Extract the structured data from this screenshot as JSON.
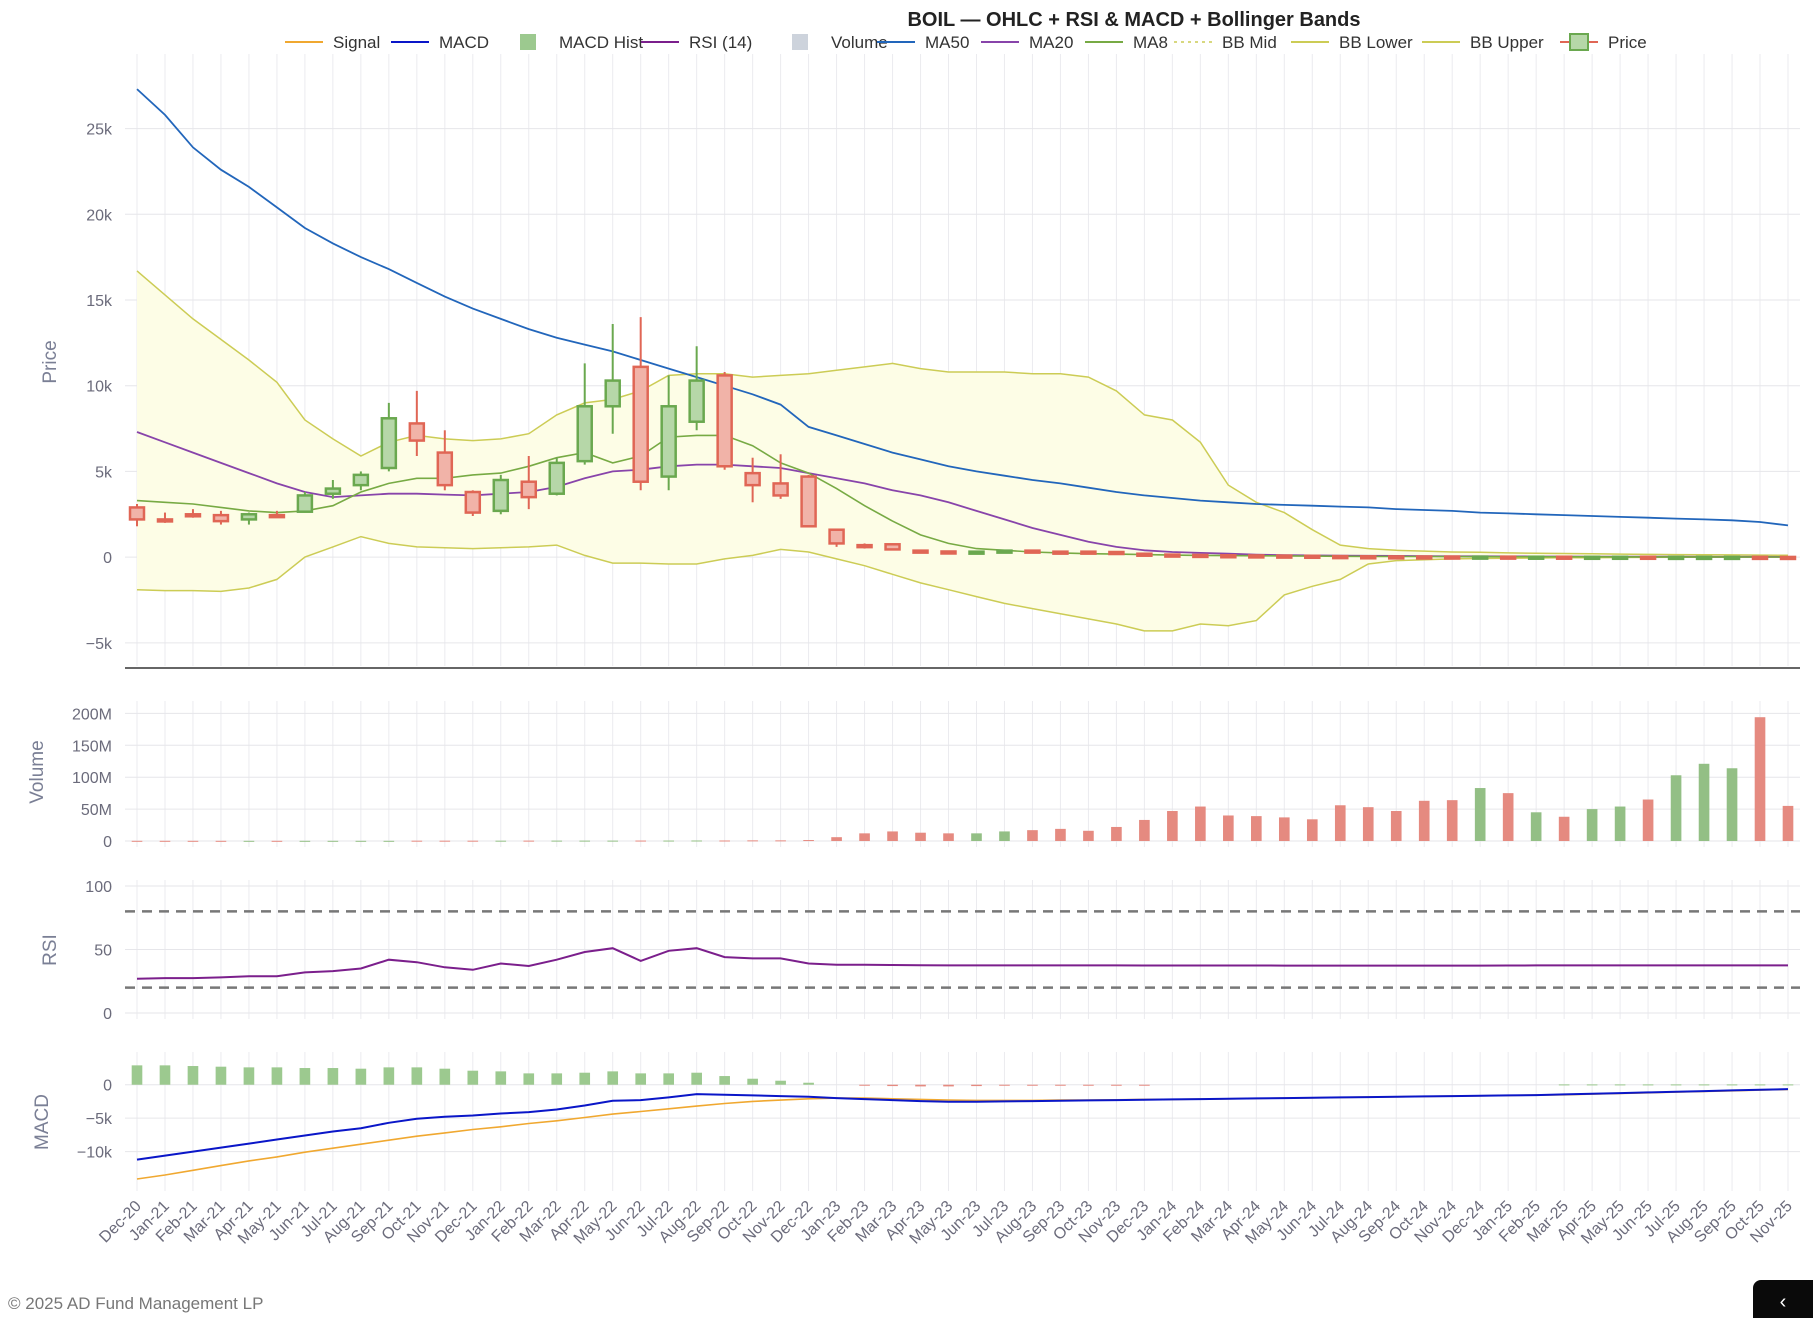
{
  "chart_data": {
    "type": "candlestick",
    "title": "BOIL — OHLC + RSI & MACD + Bollinger Bands",
    "legend": [
      "Signal",
      "MACD",
      "MACD Hist",
      "RSI (14)",
      "Volume",
      "MA50",
      "MA20",
      "MA8",
      "BB Mid",
      "BB Lower",
      "BB Upper",
      "Price"
    ],
    "legend_placement": "top",
    "colors": {
      "up": "#6aa84f",
      "up_fill": "#b6d7a8",
      "down": "#e06655",
      "down_fill": "#f1b3a8",
      "signal": "#f0a830",
      "macd": "#0a16c8",
      "rsi": "#7b1f8c",
      "ma50": "#2266bb",
      "ma20": "#8844aa",
      "ma8": "#77aa44",
      "bb": "#cccc55",
      "bb_fill": "#fdfde6",
      "vol_up": "#93bf85",
      "vol_down": "#e58a80",
      "hist": "#9cc98f"
    },
    "categories": [
      "Dec-20",
      "Jan-21",
      "Feb-21",
      "Mar-21",
      "Apr-21",
      "May-21",
      "Jun-21",
      "Jul-21",
      "Aug-21",
      "Sep-21",
      "Oct-21",
      "Nov-21",
      "Dec-21",
      "Jan-22",
      "Feb-22",
      "Mar-22",
      "Apr-22",
      "May-22",
      "Jun-22",
      "Jul-22",
      "Aug-22",
      "Sep-22",
      "Oct-22",
      "Nov-22",
      "Dec-22",
      "Jan-23",
      "Feb-23",
      "Mar-23",
      "Apr-23",
      "May-23",
      "Jun-23",
      "Jul-23",
      "Aug-23",
      "Sep-23",
      "Oct-23",
      "Nov-23",
      "Dec-23",
      "Jan-24",
      "Feb-24",
      "Mar-24",
      "Apr-24",
      "May-24",
      "Jun-24",
      "Jul-24",
      "Aug-24",
      "Sep-24",
      "Oct-24",
      "Nov-24",
      "Dec-24",
      "Jan-25",
      "Feb-25",
      "Mar-25",
      "Apr-25",
      "May-25",
      "Jun-25",
      "Jul-25",
      "Aug-25",
      "Sep-25",
      "Oct-25",
      "Nov-25"
    ],
    "price": {
      "ylabel": "Price",
      "ylim": [
        -6000,
        29000
      ],
      "ticks": [
        -5000,
        0,
        5000,
        10000,
        15000,
        20000,
        25000
      ],
      "tick_labels": [
        "−5k",
        "0",
        "5k",
        "10k",
        "15k",
        "20k",
        "25k"
      ],
      "open": [
        2900,
        2200,
        2500,
        2450,
        2200,
        2450,
        2650,
        3700,
        4200,
        5200,
        7800,
        6100,
        3800,
        2700,
        4400,
        3700,
        5600,
        8800,
        11100,
        4700,
        7900,
        10600,
        4900,
        4300,
        4700,
        1600,
        700,
        750,
        380,
        330,
        300,
        320,
        380,
        320,
        320,
        300,
        200,
        150,
        130,
        110,
        100,
        90,
        80,
        60,
        50,
        45,
        40,
        35,
        30,
        30,
        25,
        25,
        20,
        20,
        20,
        15,
        15,
        15,
        15,
        12
      ],
      "high": [
        3100,
        2600,
        2800,
        2700,
        2600,
        2700,
        3800,
        4500,
        5000,
        9000,
        9700,
        7400,
        3900,
        4800,
        5900,
        5800,
        11300,
        13600,
        14000,
        10600,
        12300,
        10800,
        5800,
        6000,
        4800,
        1650,
        800,
        800,
        420,
        380,
        340,
        360,
        420,
        360,
        350,
        320,
        230,
        180,
        150,
        130,
        110,
        100,
        90,
        75,
        60,
        50,
        45,
        40,
        35,
        35,
        30,
        28,
        25,
        22,
        22,
        18,
        18,
        18,
        18,
        15
      ],
      "low": [
        1800,
        2000,
        2300,
        1900,
        1900,
        2300,
        2600,
        3400,
        3900,
        5000,
        5900,
        3900,
        2400,
        2500,
        2800,
        3600,
        5400,
        7200,
        3900,
        3900,
        7400,
        5100,
        3200,
        3400,
        1800,
        600,
        500,
        400,
        280,
        280,
        270,
        280,
        300,
        270,
        260,
        200,
        110,
        100,
        90,
        80,
        70,
        60,
        50,
        40,
        35,
        30,
        28,
        25,
        22,
        20,
        18,
        16,
        15,
        14,
        13,
        12,
        11,
        10,
        10,
        9
      ],
      "close": [
        2200,
        2100,
        2400,
        2100,
        2500,
        2350,
        3600,
        4000,
        4800,
        8100,
        6800,
        4200,
        2600,
        4500,
        3500,
        5500,
        8800,
        10300,
        4400,
        8800,
        10300,
        5300,
        4200,
        3600,
        1800,
        800,
        650,
        450,
        330,
        300,
        320,
        380,
        310,
        310,
        300,
        200,
        150,
        130,
        110,
        100,
        90,
        80,
        70,
        50,
        45,
        40,
        35,
        30,
        30,
        25,
        25,
        20,
        20,
        20,
        15,
        15,
        15,
        15,
        12,
        10
      ],
      "ma50": [
        27300,
        25800,
        23900,
        22600,
        21600,
        20400,
        19200,
        18300,
        17500,
        16800,
        16000,
        15200,
        14500,
        13900,
        13300,
        12800,
        12400,
        12000,
        11500,
        11000,
        10500,
        10000,
        9500,
        8900,
        7600,
        7100,
        6600,
        6100,
        5700,
        5300,
        5000,
        4750,
        4500,
        4300,
        4050,
        3800,
        3600,
        3450,
        3300,
        3200,
        3100,
        3050,
        3000,
        2950,
        2900,
        2800,
        2750,
        2700,
        2600,
        2550,
        2500,
        2450,
        2400,
        2350,
        2300,
        2250,
        2200,
        2150,
        2050,
        1850
      ],
      "ma20": [
        7300,
        6700,
        6100,
        5500,
        4900,
        4300,
        3800,
        3500,
        3600,
        3700,
        3700,
        3650,
        3600,
        3700,
        3800,
        4100,
        4600,
        5000,
        5100,
        5300,
        5400,
        5400,
        5300,
        5200,
        4900,
        4600,
        4300,
        3900,
        3600,
        3200,
        2700,
        2200,
        1700,
        1300,
        900,
        600,
        400,
        300,
        250,
        200,
        150,
        120,
        100,
        90,
        80,
        70,
        60,
        50,
        50,
        45,
        40,
        35,
        30,
        30,
        28,
        25,
        22,
        20,
        18,
        15
      ],
      "ma8": [
        3300,
        3200,
        3100,
        2900,
        2700,
        2600,
        2700,
        3000,
        3800,
        4300,
        4600,
        4600,
        4800,
        4900,
        5300,
        5800,
        6100,
        5500,
        5900,
        7000,
        7100,
        7100,
        6500,
        5500,
        4900,
        4000,
        3000,
        2100,
        1300,
        800,
        500,
        400,
        300,
        250,
        200,
        180,
        150,
        120,
        100,
        90,
        80,
        70,
        60,
        50,
        45,
        40,
        35,
        30,
        28,
        25,
        22,
        20,
        18,
        16,
        15,
        14,
        13,
        12,
        11,
        10
      ],
      "bb_upper": [
        16700,
        15300,
        13900,
        12700,
        11500,
        10200,
        8000,
        6900,
        5900,
        6700,
        7100,
        6900,
        6800,
        6900,
        7200,
        8300,
        9000,
        9200,
        9700,
        10600,
        10700,
        10700,
        10500,
        10600,
        10700,
        10900,
        11100,
        11300,
        11000,
        10800,
        10800,
        10800,
        10700,
        10700,
        10500,
        9700,
        8300,
        8000,
        6700,
        4200,
        3200,
        2600,
        1600,
        700,
        500,
        400,
        350,
        300,
        280,
        250,
        230,
        210,
        200,
        180,
        160,
        150,
        140,
        130,
        120,
        110
      ],
      "bb_lower": [
        -1900,
        -1950,
        -1950,
        -2000,
        -1800,
        -1300,
        0,
        600,
        1200,
        800,
        600,
        550,
        500,
        550,
        600,
        700,
        100,
        -350,
        -350,
        -400,
        -400,
        -100,
        100,
        450,
        300,
        -100,
        -500,
        -1000,
        -1500,
        -1900,
        -2300,
        -2700,
        -3000,
        -3300,
        -3600,
        -3900,
        -4300,
        -4300,
        -3900,
        -4000,
        -3700,
        -2200,
        -1700,
        -1300,
        -400,
        -200,
        -150,
        -100,
        -80,
        -60,
        -50,
        -40,
        -30,
        -20,
        -15,
        -10,
        -8,
        -6,
        -5,
        -4
      ]
    },
    "volume": {
      "ylabel": "Volume",
      "ylim": [
        0,
        210
      ],
      "unit": "M",
      "ticks": [
        0,
        50,
        100,
        150,
        200
      ],
      "tick_labels": [
        "0",
        "50M",
        "100M",
        "150M",
        "200M"
      ],
      "values": [
        0.3,
        0.3,
        0.3,
        0.3,
        0.3,
        0.3,
        0.3,
        0.3,
        0.3,
        0.3,
        0.5,
        0.5,
        0.5,
        0.5,
        0.6,
        0.6,
        0.6,
        0.6,
        0.7,
        0.7,
        0.8,
        0.8,
        1,
        1,
        1.5,
        6,
        12,
        15,
        13,
        12,
        12,
        15,
        17,
        19,
        16,
        22,
        33,
        47,
        54,
        40,
        39,
        37,
        34,
        56,
        53,
        47,
        63,
        64,
        83,
        75,
        45,
        38,
        50,
        54,
        65,
        103,
        121,
        114,
        194,
        55
      ]
    },
    "rsi": {
      "ylabel": "RSI",
      "ylim": [
        0,
        100
      ],
      "ticks": [
        0,
        50,
        100
      ],
      "bands": [
        80,
        20
      ],
      "values": [
        27,
        27.5,
        27.5,
        28,
        29,
        29,
        32,
        33,
        35,
        42,
        40,
        36,
        34,
        39,
        37,
        42,
        48,
        51,
        41,
        49,
        51,
        44,
        43,
        43,
        39,
        38,
        38,
        37.8,
        37.6,
        37.5,
        37.5,
        37.5,
        37.5,
        37.5,
        37.5,
        37.5,
        37.4,
        37.4,
        37.4,
        37.4,
        37.4,
        37.3,
        37.3,
        37.3,
        37.3,
        37.3,
        37.3,
        37.3,
        37.3,
        37.4,
        37.5,
        37.5,
        37.5,
        37.5,
        37.5,
        37.5,
        37.5,
        37.5,
        37.5,
        37.5
      ]
    },
    "macd": {
      "ylabel": "MACD",
      "ylim": [
        -15000,
        4000
      ],
      "ticks": [
        -10000,
        -5000,
        0
      ],
      "tick_labels": [
        "−10k",
        "−5k",
        "0"
      ],
      "macd": [
        -11200,
        -10600,
        -10000,
        -9400,
        -8800,
        -8200,
        -7600,
        -7000,
        -6500,
        -5700,
        -5100,
        -4800,
        -4600,
        -4300,
        -4100,
        -3700,
        -3100,
        -2400,
        -2300,
        -1900,
        -1400,
        -1500,
        -1600,
        -1700,
        -1800,
        -2000,
        -2150,
        -2300,
        -2450,
        -2550,
        -2550,
        -2500,
        -2450,
        -2400,
        -2350,
        -2300,
        -2250,
        -2200,
        -2150,
        -2100,
        -2050,
        -2000,
        -1950,
        -1900,
        -1850,
        -1800,
        -1750,
        -1700,
        -1650,
        -1600,
        -1550,
        -1450,
        -1350,
        -1250,
        -1150,
        -1050,
        -950,
        -850,
        -750,
        -650
      ],
      "signal": [
        -14100,
        -13500,
        -12800,
        -12100,
        -11400,
        -10800,
        -10100,
        -9500,
        -8900,
        -8300,
        -7700,
        -7200,
        -6700,
        -6300,
        -5800,
        -5400,
        -4900,
        -4400,
        -4000,
        -3600,
        -3200,
        -2800,
        -2500,
        -2300,
        -2100,
        -2000,
        -2000,
        -2100,
        -2200,
        -2300,
        -2350,
        -2350,
        -2350,
        -2300,
        -2300,
        -2250,
        -2200,
        -2200,
        -2150,
        -2100,
        -2050,
        -2000,
        -1950,
        -1900,
        -1850,
        -1800,
        -1750,
        -1700,
        -1650,
        -1600,
        -1550,
        -1500,
        -1400,
        -1300,
        -1200,
        -1100,
        -1000,
        -900,
        -800,
        -700
      ],
      "hist": [
        2900,
        2900,
        2800,
        2700,
        2600,
        2600,
        2500,
        2500,
        2400,
        2600,
        2600,
        2400,
        2100,
        2000,
        1700,
        1700,
        1800,
        2000,
        1700,
        1700,
        1800,
        1300,
        900,
        600,
        300,
        0,
        -150,
        -200,
        -250,
        -250,
        -200,
        -150,
        -100,
        -100,
        -50,
        -50,
        -50,
        0,
        0,
        0,
        0,
        0,
        0,
        0,
        0,
        0,
        0,
        0,
        0,
        0,
        0,
        50,
        50,
        50,
        50,
        50,
        50,
        50,
        50,
        50
      ]
    }
  },
  "footer": {
    "copyright": "© 2025 AD Fund Management LP",
    "corner_icon": "chevron-left-icon",
    "corner_glyph": "‹"
  }
}
